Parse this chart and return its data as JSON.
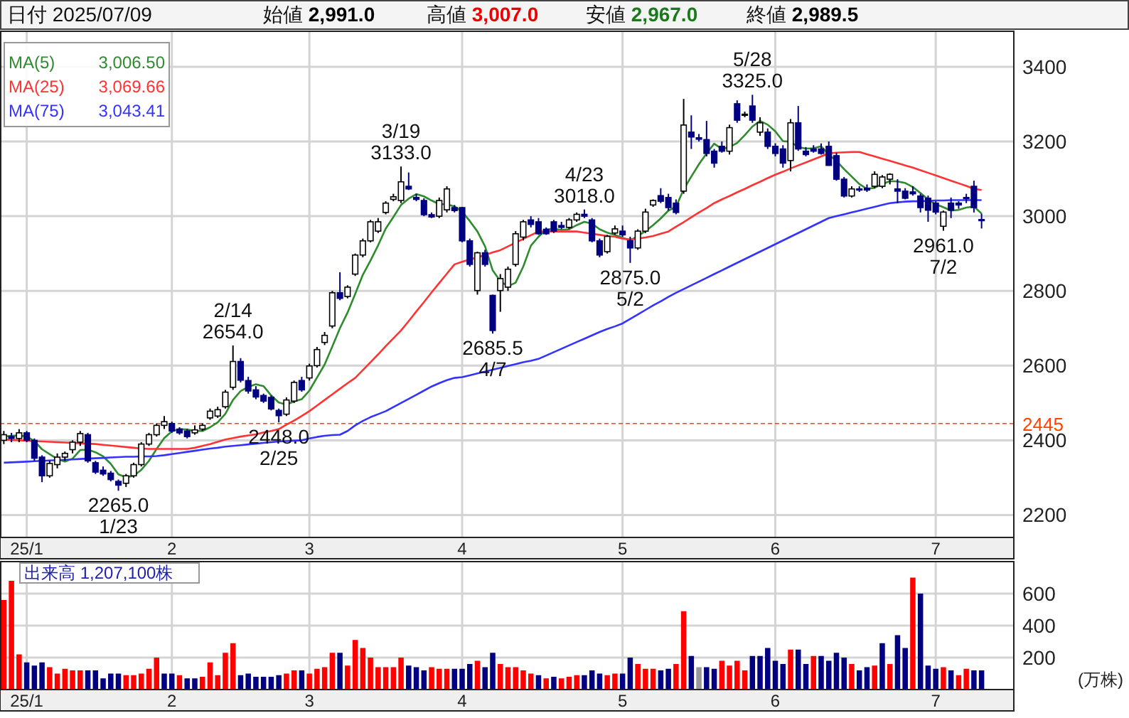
{
  "chart_data": [
    {
      "type": "candlestick",
      "grid": true,
      "legend": "left",
      "annotations": [
        "日付 2025/07/09",
        "始値 **2,991.0**",
        "高値 **3,007.0**",
        "安値 **2,967.0**",
        "終値 **2,989.5**",
        "3,006.50",
        "3,069.66",
        "3,043.41",
        {
          "text": "2265.0 1/23",
          "y": 2265
        },
        {
          "text": "2/14 2654.0",
          "y": 2654
        },
        {
          "text": "2448.0 2/25",
          "y": 2448
        },
        {
          "text": "3/19 3133.0",
          "y": 3133
        },
        {
          "text": "2685.5 4/7",
          "y": 2685.5
        },
        {
          "text": "4/23 3018.0",
          "y": 3018
        },
        {
          "text": "2875.0 5/2",
          "y": 2875
        },
        {
          "text": "5/28 3325.0",
          "y": 3325
        },
        {
          "text": "2961.0 7/2",
          "y": 2961
        }
      ],
      "categories": [
        null,
        null,
        null,
        "25/1",
        null,
        null,
        null,
        null,
        null,
        null,
        null,
        null,
        null,
        null,
        null,
        null,
        null,
        null,
        null,
        null,
        null,
        null,
        "2",
        null,
        null,
        null,
        null,
        null,
        null,
        null,
        null,
        null,
        null,
        null,
        null,
        null,
        null,
        null,
        null,
        null,
        "3",
        null,
        null,
        null,
        null,
        null,
        null,
        null,
        null,
        null,
        null,
        null,
        null,
        null,
        null,
        null,
        null,
        null,
        null,
        null,
        "4",
        null,
        null,
        null,
        null,
        null,
        null,
        null,
        null,
        null,
        null,
        null,
        null,
        null,
        null,
        null,
        null,
        null,
        null,
        null,
        null,
        "5",
        null,
        null,
        null,
        null,
        null,
        null,
        null,
        null,
        null,
        null,
        null,
        null,
        null,
        null,
        null,
        null,
        null,
        null,
        null,
        "6",
        null,
        null,
        null,
        null,
        null,
        null,
        null,
        null,
        null,
        null,
        null,
        null,
        null,
        null,
        null,
        null,
        null,
        null,
        null,
        null,
        "7",
        null,
        null,
        null,
        null,
        null,
        null
      ],
      "ohlc": [
        [
          2400,
          2425,
          2390,
          2415
        ],
        [
          2410,
          2420,
          2395,
          2405
        ],
        [
          2405,
          2430,
          2395,
          2420
        ],
        [
          2420,
          2425,
          2395,
          2400
        ],
        [
          2400,
          2405,
          2345,
          2352
        ],
        [
          2355,
          2360,
          2288,
          2305
        ],
        [
          2305,
          2345,
          2300,
          2338
        ],
        [
          2335,
          2365,
          2325,
          2355
        ],
        [
          2355,
          2370,
          2345,
          2365
        ],
        [
          2375,
          2400,
          2365,
          2395
        ],
        [
          2395,
          2425,
          2385,
          2418
        ],
        [
          2415,
          2420,
          2340,
          2345
        ],
        [
          2340,
          2345,
          2310,
          2315
        ],
        [
          2320,
          2330,
          2305,
          2310
        ],
        [
          2312,
          2318,
          2290,
          2295
        ],
        [
          2290,
          2295,
          2265,
          2280
        ],
        [
          2285,
          2310,
          2275,
          2305
        ],
        [
          2305,
          2340,
          2300,
          2335
        ],
        [
          2335,
          2395,
          2330,
          2390
        ],
        [
          2390,
          2420,
          2385,
          2415
        ],
        [
          2415,
          2445,
          2410,
          2440
        ],
        [
          2440,
          2465,
          2430,
          2450
        ],
        [
          2445,
          2450,
          2420,
          2425
        ],
        [
          2430,
          2435,
          2415,
          2420
        ],
        [
          2425,
          2430,
          2405,
          2410
        ],
        [
          2420,
          2440,
          2415,
          2428
        ],
        [
          2430,
          2445,
          2425,
          2440
        ],
        [
          2460,
          2485,
          2455,
          2478
        ],
        [
          2465,
          2490,
          2460,
          2482
        ],
        [
          2490,
          2535,
          2485,
          2529
        ],
        [
          2542,
          2654,
          2535,
          2611
        ],
        [
          2611,
          2620,
          2555,
          2561
        ],
        [
          2560,
          2570,
          2525,
          2532
        ],
        [
          2535,
          2545,
          2510,
          2516
        ],
        [
          2520,
          2525,
          2500,
          2505
        ],
        [
          2515,
          2520,
          2480,
          2484
        ],
        [
          2480,
          2485,
          2448,
          2466
        ],
        [
          2470,
          2515,
          2465,
          2508
        ],
        [
          2505,
          2560,
          2500,
          2555
        ],
        [
          2560,
          2570,
          2530,
          2535
        ],
        [
          2567,
          2605,
          2560,
          2599
        ],
        [
          2600,
          2650,
          2595,
          2643
        ],
        [
          2662,
          2690,
          2655,
          2681
        ],
        [
          2706,
          2800,
          2700,
          2795
        ],
        [
          2795,
          2850,
          2775,
          2780
        ],
        [
          2785,
          2815,
          2780,
          2810
        ],
        [
          2845,
          2900,
          2840,
          2896
        ],
        [
          2896,
          2940,
          2890,
          2934
        ],
        [
          2934,
          2990,
          2930,
          2985
        ],
        [
          2960,
          2995,
          2955,
          2985
        ],
        [
          3010,
          3040,
          3005,
          3035
        ],
        [
          3045,
          3060,
          3040,
          3052
        ],
        [
          3042,
          3133,
          3035,
          3092
        ],
        [
          3080,
          3117,
          3070,
          3073
        ],
        [
          3050,
          3060,
          3040,
          3045
        ],
        [
          3042,
          3048,
          3000,
          3004
        ],
        [
          3004,
          3010,
          2995,
          2998
        ],
        [
          3000,
          3050,
          2995,
          3042
        ],
        [
          3017,
          3080,
          3010,
          3073
        ],
        [
          3023,
          3030,
          3010,
          3015
        ],
        [
          3023,
          3025,
          2930,
          2934
        ],
        [
          2934,
          2940,
          2865,
          2871
        ],
        [
          2801,
          2905,
          2790,
          2902
        ],
        [
          2902,
          2910,
          2865,
          2871
        ],
        [
          2788,
          2790,
          2685.5,
          2694
        ],
        [
          2801,
          2845,
          2744,
          2833
        ],
        [
          2810,
          2865,
          2800,
          2858
        ],
        [
          2871,
          2960,
          2865,
          2953
        ],
        [
          2944,
          2990,
          2935,
          2985
        ],
        [
          2990,
          3000,
          2970,
          2978
        ],
        [
          2985,
          2995,
          2950,
          2953
        ],
        [
          2965,
          2970,
          2950,
          2953
        ],
        [
          2985,
          2990,
          2955,
          2960
        ],
        [
          2975,
          2985,
          2965,
          2970
        ],
        [
          2970,
          2995,
          2965,
          2990
        ],
        [
          2990,
          3010,
          2985,
          3005
        ],
        [
          3005,
          3018,
          2995,
          3000
        ],
        [
          2990,
          2995,
          2930,
          2934
        ],
        [
          2934,
          2940,
          2890,
          2896
        ],
        [
          2905,
          2950,
          2900,
          2946
        ],
        [
          2955,
          2975,
          2950,
          2966
        ],
        [
          2960,
          2975,
          2945,
          2950
        ],
        [
          2934,
          2945,
          2875,
          2915
        ],
        [
          2915,
          2965,
          2910,
          2960
        ],
        [
          2960,
          3020,
          2955,
          3011
        ],
        [
          3030,
          3045,
          3025,
          3042
        ],
        [
          3055,
          3075,
          3035,
          3040
        ],
        [
          3050,
          3060,
          3015,
          3023
        ],
        [
          3035,
          3045,
          3005,
          3010
        ],
        [
          3067,
          3314,
          3060,
          3244
        ],
        [
          3225,
          3270,
          3180,
          3212
        ],
        [
          3210,
          3220,
          3200,
          3206
        ],
        [
          3205,
          3255,
          3160,
          3168
        ],
        [
          3174,
          3180,
          3130,
          3142
        ],
        [
          3187,
          3200,
          3170,
          3174
        ],
        [
          3174,
          3245,
          3165,
          3237
        ],
        [
          3301,
          3310,
          3250,
          3257
        ],
        [
          3270,
          3280,
          3265,
          3273
        ],
        [
          3295,
          3325,
          3250,
          3257
        ],
        [
          3225,
          3265,
          3215,
          3250
        ],
        [
          3225,
          3235,
          3180,
          3187
        ],
        [
          3187,
          3195,
          3160,
          3168
        ],
        [
          3180,
          3190,
          3130,
          3142
        ],
        [
          3149,
          3260,
          3120,
          3250
        ],
        [
          3250,
          3295,
          3175,
          3180
        ],
        [
          3174,
          3185,
          3160,
          3165
        ],
        [
          3180,
          3190,
          3170,
          3174
        ],
        [
          3180,
          3195,
          3165,
          3168
        ],
        [
          3187,
          3200,
          3135,
          3136
        ],
        [
          3162,
          3170,
          3095,
          3099
        ],
        [
          3099,
          3105,
          3050,
          3054
        ],
        [
          3054,
          3080,
          3050,
          3073
        ],
        [
          3073,
          3080,
          3065,
          3070
        ],
        [
          3075,
          3085,
          3065,
          3070
        ],
        [
          3080,
          3120,
          3075,
          3112
        ],
        [
          3080,
          3110,
          3075,
          3105
        ],
        [
          3099,
          3115,
          3085,
          3112
        ],
        [
          3073,
          3099,
          3035,
          3067
        ],
        [
          3067,
          3075,
          3045,
          3048
        ],
        [
          3065,
          3080,
          3055,
          3060
        ],
        [
          3054,
          3060,
          3010,
          3023
        ],
        [
          3048,
          3055,
          2985,
          3016
        ],
        [
          3035,
          3040,
          3005,
          3011
        ],
        [
          2973,
          3015,
          2961,
          3011
        ],
        [
          3035,
          3050,
          2995,
          3016
        ],
        [
          3035,
          3040,
          3020,
          3030
        ],
        [
          3050,
          3060,
          3035,
          3048
        ],
        [
          3080,
          3095,
          3010,
          3023
        ],
        [
          2991,
          3007,
          2967,
          2989.5
        ]
      ],
      "series": [
        {
          "name": "MA(5)",
          "type": "line",
          "color": "#2e8b2e",
          "values": [
            2410,
            2412,
            2413,
            2410,
            2398,
            2376,
            2363,
            2350,
            2343,
            2351,
            2374,
            2375,
            2368,
            2357,
            2337,
            2309,
            2301,
            2305,
            2321,
            2345,
            2377,
            2406,
            2424,
            2430,
            2429,
            2425,
            2425,
            2435,
            2448,
            2471,
            2508,
            2532,
            2543,
            2550,
            2545,
            2520,
            2501,
            2496,
            2504,
            2510,
            2533,
            2568,
            2603,
            2651,
            2700,
            2742,
            2792,
            2843,
            2881,
            2922,
            2967,
            2998,
            3030,
            3047,
            3059,
            3053,
            3042,
            3032,
            3032,
            3026,
            3012,
            2987,
            2959,
            2919,
            2855,
            2826,
            2812,
            2822,
            2865,
            2921,
            2945,
            2964,
            2966,
            2963,
            2965,
            2976,
            2985,
            2980,
            2965,
            2956,
            2950,
            2942,
            2935,
            2947,
            2960,
            2976,
            2994,
            3015,
            3025,
            3072,
            3106,
            3139,
            3168,
            3194,
            3180,
            3185,
            3196,
            3217,
            3240,
            3255,
            3245,
            3227,
            3201,
            3199,
            3185,
            3181,
            3182,
            3187,
            3165,
            3148,
            3126,
            3106,
            3086,
            3073,
            3076,
            3086,
            3094,
            3093,
            3089,
            3078,
            3062,
            3045,
            3032,
            3024,
            3015,
            3017,
            3023,
            3026,
            3007
          ]
        },
        {
          "name": "MA(25)",
          "type": "line",
          "color": "#ff3333",
          "values": [
            2402,
            2401,
            2400,
            2399,
            2398,
            2397,
            2396,
            2395,
            2394,
            2393,
            2392,
            2391,
            2390,
            2388,
            2386,
            2384,
            2382,
            2380,
            2378,
            2377,
            2377,
            2377,
            2377,
            2377,
            2377,
            2380,
            2385,
            2390,
            2396,
            2402,
            2406,
            2410,
            2413,
            2416,
            2421,
            2425,
            2430,
            2442,
            2453,
            2465,
            2478,
            2493,
            2508,
            2523,
            2538,
            2553,
            2567,
            2588,
            2609,
            2630,
            2652,
            2673,
            2694,
            2719,
            2745,
            2770,
            2796,
            2821,
            2846,
            2871,
            2878,
            2884,
            2890,
            2896,
            2903,
            2909,
            2919,
            2929,
            2939,
            2949,
            2959,
            2959,
            2959,
            2959,
            2959,
            2959,
            2956,
            2953,
            2950,
            2947,
            2945,
            2940,
            2938,
            2940,
            2943,
            2947,
            2953,
            2959,
            2972,
            2984,
            2997,
            3010,
            3022,
            3035,
            3045,
            3054,
            3064,
            3073,
            3083,
            3092,
            3102,
            3111,
            3119,
            3128,
            3136,
            3144,
            3152,
            3160,
            3168,
            3170,
            3171,
            3172,
            3172,
            3166,
            3160,
            3154,
            3148,
            3142,
            3136,
            3130,
            3123,
            3116,
            3109,
            3102,
            3095,
            3088,
            3081,
            3073,
            3070
          ]
        },
        {
          "name": "MA(75)",
          "type": "line",
          "color": "#3333ff",
          "values": [
            2340,
            2341,
            2342,
            2343,
            2344,
            2345,
            2346,
            2347,
            2348,
            2349,
            2350,
            2351,
            2352,
            2353,
            2354,
            2355,
            2356,
            2356,
            2357,
            2357,
            2358,
            2360,
            2363,
            2366,
            2369,
            2372,
            2375,
            2378,
            2380,
            2383,
            2385,
            2387,
            2389,
            2391,
            2393,
            2395,
            2397,
            2398,
            2399,
            2400,
            2405,
            2409,
            2412,
            2414,
            2415,
            2425,
            2440,
            2452,
            2462,
            2470,
            2478,
            2489,
            2500,
            2511,
            2522,
            2533,
            2544,
            2553,
            2561,
            2567,
            2569,
            2574,
            2579,
            2584,
            2589,
            2594,
            2599,
            2604,
            2609,
            2613,
            2618,
            2627,
            2636,
            2645,
            2654,
            2663,
            2672,
            2681,
            2690,
            2698,
            2705,
            2713,
            2725,
            2737,
            2749,
            2761,
            2772,
            2784,
            2795,
            2805,
            2815,
            2825,
            2835,
            2845,
            2855,
            2865,
            2875,
            2885,
            2895,
            2905,
            2915,
            2925,
            2935,
            2945,
            2955,
            2965,
            2975,
            2985,
            2995,
            3000,
            3005,
            3010,
            3015,
            3020,
            3025,
            3030,
            3035,
            3037,
            3039,
            3040,
            3040,
            3041,
            3042,
            3042,
            3043,
            3043,
            3043,
            3043,
            3043
          ]
        }
      ],
      "ylim": [
        2140,
        3495
      ],
      "yticks": [
        2200,
        2400,
        2600,
        2800,
        3000,
        3200,
        3400
      ],
      "ref_lines": [
        {
          "axis": "y",
          "value": 2445,
          "label": "2445",
          "color": "#ff4500",
          "line_style": "dashed"
        }
      ]
    },
    {
      "type": "bar",
      "grid": true,
      "ylabel": "(万株)",
      "annotations": [
        "出来高 1,207,100株"
      ],
      "categories": [
        null,
        null,
        null,
        "25/1",
        null,
        null,
        null,
        null,
        null,
        null,
        null,
        null,
        null,
        null,
        null,
        null,
        null,
        null,
        null,
        null,
        null,
        null,
        "2",
        null,
        null,
        null,
        null,
        null,
        null,
        null,
        null,
        null,
        null,
        null,
        null,
        null,
        null,
        null,
        null,
        null,
        "3",
        null,
        null,
        null,
        null,
        null,
        null,
        null,
        null,
        null,
        null,
        null,
        null,
        null,
        null,
        null,
        null,
        null,
        null,
        null,
        "4",
        null,
        null,
        null,
        null,
        null,
        null,
        null,
        null,
        null,
        null,
        null,
        null,
        null,
        null,
        null,
        null,
        null,
        null,
        null,
        null,
        "5",
        null,
        null,
        null,
        null,
        null,
        null,
        null,
        null,
        null,
        null,
        null,
        null,
        null,
        null,
        null,
        null,
        null,
        null,
        null,
        "6",
        null,
        null,
        null,
        null,
        null,
        null,
        null,
        null,
        null,
        null,
        null,
        null,
        null,
        null,
        null,
        null,
        null,
        null,
        null,
        null,
        "7",
        null,
        null,
        null,
        null,
        null,
        null
      ],
      "values": [
        560,
        680,
        220,
        170,
        150,
        170,
        140,
        100,
        130,
        120,
        120,
        120,
        120,
        70,
        100,
        100,
        90,
        90,
        100,
        130,
        200,
        100,
        100,
        90,
        70,
        70,
        80,
        170,
        90,
        230,
        290,
        90,
        100,
        80,
        80,
        80,
        90,
        100,
        120,
        120,
        100,
        130,
        140,
        230,
        230,
        150,
        310,
        260,
        200,
        140,
        140,
        140,
        200,
        150,
        140,
        120,
        140,
        130,
        130,
        130,
        130,
        160,
        180,
        140,
        230,
        160,
        140,
        140,
        120,
        100,
        90,
        70,
        80,
        70,
        80,
        90,
        90,
        120,
        100,
        90,
        100,
        100,
        200,
        160,
        130,
        130,
        120,
        130,
        160,
        490,
        210,
        140,
        140,
        130,
        180,
        150,
        180,
        120,
        210,
        210,
        260,
        180,
        160,
        250,
        250,
        160,
        210,
        210,
        180,
        230,
        200,
        160,
        120,
        140,
        150,
        290,
        160,
        340,
        260,
        700,
        600,
        150,
        130,
        140,
        120,
        90,
        130,
        120,
        120
      ],
      "colors": [
        "#ff0000",
        "#ff0000",
        "#ff0000",
        "#000080",
        "#000080",
        "#000080",
        "#ff0000",
        "#ff0000",
        "#ff0000",
        "#ff0000",
        "#ff0000",
        "#000080",
        "#000080",
        "#000080",
        "#000080",
        "#000080",
        "#ff0000",
        "#ff0000",
        "#ff0000",
        "#ff0000",
        "#ff0000",
        "#000080",
        "#000080",
        "#ff0000",
        "#000080",
        "#000080",
        "#ff0000",
        "#ff0000",
        "#ff0000",
        "#ff0000",
        "#ff0000",
        "#000080",
        "#000080",
        "#000080",
        "#000080",
        "#000080",
        "#000080",
        "#ff0000",
        "#ff0000",
        "#000080",
        "#ff0000",
        "#ff0000",
        "#ff0000",
        "#ff0000",
        "#000080",
        "#ff0000",
        "#ff0000",
        "#ff0000",
        "#ff0000",
        "#ff0000",
        "#ff0000",
        "#ff0000",
        "#ff0000",
        "#000080",
        "#000080",
        "#000080",
        "#ff0000",
        "#ff0000",
        "#ff0000",
        "#000080",
        "#000080",
        "#000080",
        "#ff0000",
        "#000080",
        "#000080",
        "#ff0000",
        "#ff0000",
        "#ff0000",
        "#ff0000",
        "#ff0000",
        "#000080",
        "#ff0000",
        "#000080",
        "#ff0000",
        "#ff0000",
        "#ff0000",
        "#000080",
        "#000080",
        "#000080",
        "#ff0000",
        "#ff0000",
        "#000080",
        "#000080",
        "#ff0000",
        "#ff0000",
        "#ff0000",
        "#000080",
        "#000080",
        "#ff0000",
        "#ff0000",
        "#000080",
        "#999999",
        "#000080",
        "#000080",
        "#ff0000",
        "#ff0000",
        "#ff0000",
        "#ff0000",
        "#000080",
        "#000080",
        "#000080",
        "#000080",
        "#000080",
        "#ff0000",
        "#000080",
        "#000080",
        "#ff0000",
        "#000080",
        "#000080",
        "#000080",
        "#000080",
        "#ff0000",
        "#000080",
        "#000080",
        "#ff0000",
        "#000080",
        "#ff0000",
        "#000080",
        "#000080",
        "#ff0000",
        "#000080",
        "#000080",
        "#000080",
        "#ff0000",
        "#000080",
        "#ff0000",
        "#ff0000",
        "#000080",
        "#000080"
      ],
      "ylim": [
        0,
        800
      ],
      "yticks": [
        200,
        400,
        600
      ]
    }
  ]
}
